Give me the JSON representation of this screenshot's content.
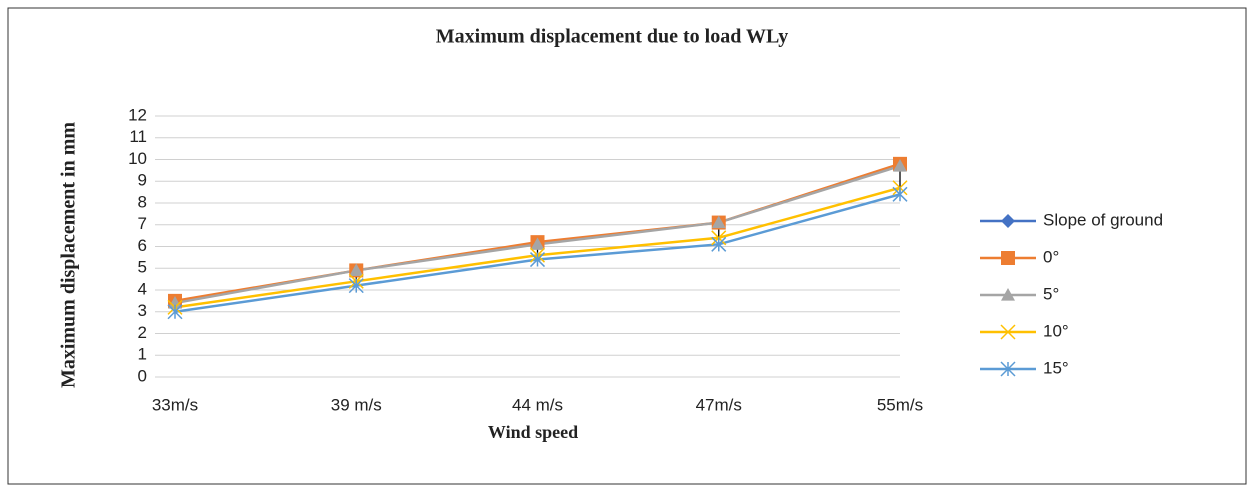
{
  "chart_data": {
    "type": "line",
    "title": "Maximum displacement due to load  WLy",
    "x_label": "Wind speed",
    "y_label": "Maximum displacement in mm",
    "categories": [
      "33m/s",
      "39 m/s",
      "44 m/s",
      "47m/s",
      "55m/s"
    ],
    "series": [
      {
        "name": "Slope of ground",
        "color": "#4472c4",
        "marker": "diamond",
        "values": [
          null,
          null,
          null,
          null,
          null
        ]
      },
      {
        "name": "0°",
        "color": "#ed7d31",
        "marker": "square",
        "values": [
          3.5,
          4.9,
          6.2,
          7.1,
          9.8
        ]
      },
      {
        "name": "5°",
        "color": "#a5a5a5",
        "marker": "triangle",
        "values": [
          3.4,
          4.9,
          6.1,
          7.1,
          9.7
        ]
      },
      {
        "name": "10°",
        "color": "#ffc000",
        "marker": "x",
        "values": [
          3.2,
          4.4,
          5.6,
          6.4,
          8.7
        ]
      },
      {
        "name": "15°",
        "color": "#5b9bd5",
        "marker": "star",
        "values": [
          3.0,
          4.2,
          5.4,
          6.1,
          8.4
        ]
      }
    ],
    "ylim": [
      0,
      12
    ],
    "yticks": [
      0,
      1,
      2,
      3,
      4,
      5,
      6,
      7,
      8,
      9,
      10,
      11,
      12
    ],
    "grid": true,
    "high_low_lines": true,
    "legend": "right"
  }
}
